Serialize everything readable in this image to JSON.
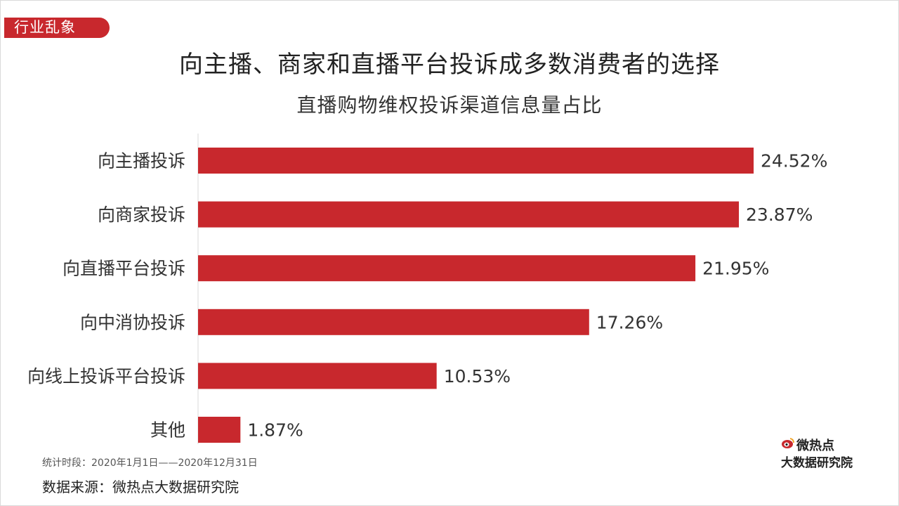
{
  "header": {
    "tag": "行业乱象",
    "title": "向主播、商家和直播平台投诉成多数消费者的选择",
    "subtitle": "直播购物维权投诉渠道信息量占比"
  },
  "footer": {
    "period": "统计时段：2020年1月1日——2020年12月31日",
    "source": "数据来源：微热点大数据研究院"
  },
  "logo": {
    "line1": "微热点",
    "line2": "大数据研究院",
    "icon": "weibo-eye-icon"
  },
  "colors": {
    "accent": "#c8282d",
    "bar": "#c8282d",
    "axis": "#d9d9d9"
  },
  "chart_data": {
    "type": "bar",
    "orientation": "horizontal",
    "title": "直播购物维权投诉渠道信息量占比",
    "categories": [
      "向主播投诉",
      "向商家投诉",
      "向直播平台投诉",
      "向中消协投诉",
      "向线上投诉平台投诉",
      "其他"
    ],
    "values": [
      24.52,
      23.87,
      21.95,
      17.26,
      10.53,
      1.87
    ],
    "value_labels": [
      "24.52%",
      "23.87%",
      "21.95%",
      "17.26%",
      "10.53%",
      "1.87%"
    ],
    "unit": "%",
    "xlim": [
      0,
      24.52
    ],
    "grid": false,
    "legend": "none"
  }
}
